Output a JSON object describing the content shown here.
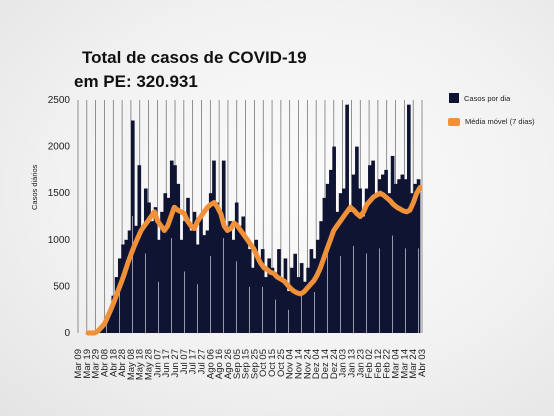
{
  "chart_data": {
    "type": "bar",
    "title_line1": "Total de casos de COVID-19",
    "title_line2": "em PE: 320.931",
    "ylabel": "Casos diários",
    "ylim": [
      0,
      2500
    ],
    "yticks": [
      0,
      500,
      1000,
      1500,
      2000,
      2500
    ],
    "grid": "vertical",
    "legend_position": "right",
    "colors": {
      "bars": "#0f1433",
      "line": "#f0913a"
    },
    "series": [
      {
        "name": "Casos por dia",
        "type": "bar"
      },
      {
        "name": "Média móvel (7 dias)",
        "type": "line"
      }
    ],
    "xticks": [
      "Mar 09",
      "Mar 19",
      "Mar 29",
      "Abr 08",
      "Abr 18",
      "Abr 28",
      "May 08",
      "May 18",
      "May 28",
      "Jun 07",
      "Jun 17",
      "Jun 27",
      "Jul 07",
      "Jul 17",
      "Jul 27",
      "Ago 06",
      "Ago 16",
      "Ago 26",
      "Sep 05",
      "Sep 15",
      "Sep 25",
      "Oct 05",
      "Oct 15",
      "Oct 25",
      "Nov 04",
      "Nov 14",
      "Nov 24",
      "Dez 04",
      "Dez 14",
      "Dez 24",
      "Jan 03",
      "Jan 13",
      "Jan 23",
      "Feb 02",
      "Feb 12",
      "Feb 22",
      "Mar 04",
      "Mar 14",
      "Mar 24",
      "Abr 03"
    ],
    "bar_values_approx": [
      0,
      20,
      40,
      80,
      150,
      250,
      400,
      600,
      800,
      950,
      1000,
      1100,
      2280,
      1150,
      1800,
      1100,
      1550,
      1400,
      1200,
      1350,
      1000,
      1300,
      1500,
      1450,
      1850,
      1800,
      1600,
      1000,
      1200,
      1450,
      1100,
      1300,
      950,
      1250,
      1050,
      1100,
      1500,
      1850,
      1400,
      1300,
      1850,
      1100,
      1200,
      1000,
      1400,
      1150,
      1250,
      1000,
      900,
      700,
      1000,
      750,
      900,
      600,
      800,
      700,
      650,
      900,
      550,
      800,
      450,
      700,
      850,
      600,
      750,
      550,
      700,
      900,
      800,
      1000,
      1200,
      1450,
      1600,
      1750,
      2000,
      1300,
      1500,
      1550,
      2450,
      1300,
      1700,
      2000,
      1550,
      1250,
      1550,
      1800,
      1850,
      1500,
      1650,
      1700,
      1750,
      1500,
      1900,
      1600,
      1650,
      1700,
      1650,
      2450,
      1500,
      1600,
      1650
    ],
    "moving_avg_approx": [
      0,
      0,
      0,
      20,
      60,
      100,
      180,
      260,
      350,
      450,
      540,
      640,
      750,
      850,
      940,
      1020,
      1100,
      1150,
      1200,
      1250,
      1300,
      1200,
      1150,
      1100,
      1150,
      1250,
      1350,
      1320,
      1300,
      1280,
      1200,
      1150,
      1120,
      1200,
      1250,
      1300,
      1350,
      1380,
      1400,
      1350,
      1280,
      1150,
      1100,
      1120,
      1180,
      1150,
      1100,
      1050,
      1000,
      950,
      900,
      820,
      750,
      700,
      680,
      650,
      640,
      600,
      580,
      560,
      520,
      480,
      450,
      430,
      420,
      440,
      480,
      520,
      560,
      620,
      700,
      800,
      900,
      1000,
      1100,
      1150,
      1200,
      1250,
      1300,
      1350,
      1320,
      1280,
      1250,
      1300,
      1380,
      1420,
      1460,
      1480,
      1500,
      1480,
      1450,
      1420,
      1380,
      1350,
      1330,
      1310,
      1300,
      1320,
      1400,
      1500,
      1560
    ]
  }
}
